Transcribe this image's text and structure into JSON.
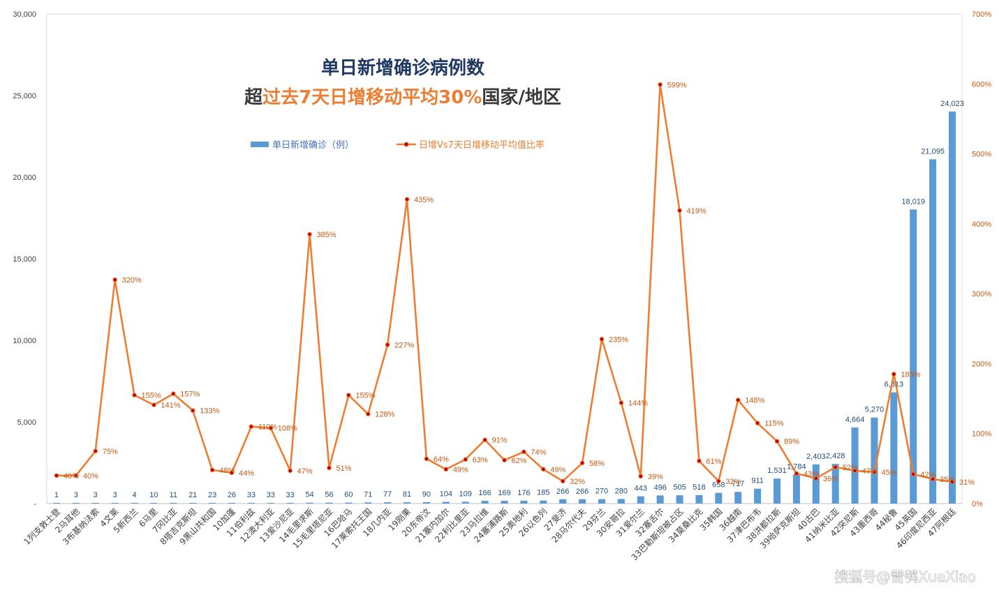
{
  "chart_data": {
    "type": "bar+line",
    "title": "单日新增确诊病例数",
    "subtitle_parts": [
      {
        "text": "超",
        "color": "#3a3a3a"
      },
      {
        "text": "过去7天日增移动平均30%",
        "color": "#ed7d31"
      },
      {
        "text": "国家/地区",
        "color": "#3a3a3a"
      }
    ],
    "colors": {
      "bar": "#5b9bd5",
      "line": "#ed7d31",
      "marker": "#c00000",
      "axis_left": "#404040",
      "axis_right": "#c55a11"
    },
    "legend": {
      "position": "top",
      "bar_label": "单日新增确诊（例）",
      "line_label": "日增Vs7天日增移动平均值比率"
    },
    "y_left": {
      "min": 0,
      "max": 30000,
      "ticks": [
        {
          "value": 0,
          "label": "-"
        },
        {
          "value": 5000,
          "label": "5,000"
        },
        {
          "value": 10000,
          "label": "10,000"
        },
        {
          "value": 15000,
          "label": "15,000"
        },
        {
          "value": 20000,
          "label": "20,000"
        },
        {
          "value": 25000,
          "label": "25,000"
        },
        {
          "value": 30000,
          "label": "30,000"
        }
      ]
    },
    "y_right": {
      "min": 0,
      "max": 700,
      "ticks": [
        {
          "value": 0,
          "label": "0%"
        },
        {
          "value": 100,
          "label": "100%"
        },
        {
          "value": 200,
          "label": "200%"
        },
        {
          "value": 300,
          "label": "300%"
        },
        {
          "value": 400,
          "label": "400%"
        },
        {
          "value": 500,
          "label": "500%"
        },
        {
          "value": 600,
          "label": "600%"
        },
        {
          "value": 700,
          "label": "700%"
        }
      ]
    },
    "categories": [
      "1列支敦士登",
      "2马耳他",
      "3布基纳法索",
      "4文莱",
      "5新西兰",
      "6马里",
      "7冈比亚",
      "8塔吉克斯坦",
      "9黑山共和国",
      "10加蓬",
      "11伯利兹",
      "12澳大利亚",
      "13爱沙尼亚",
      "14毛里求斯",
      "15毛里塔尼亚",
      "16巴哈马",
      "17莱索托王国",
      "18几内亚",
      "19刚果",
      "20东帝汶",
      "21塞内加尔",
      "22利比里亚",
      "23马拉维",
      "24塞浦路斯",
      "25奥地利",
      "26以色列",
      "27斐济",
      "28马尔代夫",
      "29芬兰",
      "30安哥拉",
      "31爱尔兰",
      "32塞舌尔",
      "33巴勒斯坦被占区",
      "34莫桑比克",
      "35韩国",
      "36越南",
      "37津巴布韦",
      "38洪都拉斯",
      "39哈萨克斯坦",
      "40古巴",
      "41纳米比亚",
      "42突尼斯",
      "43墨西哥",
      "44秘鲁",
      "45英国",
      "46印度尼西亚",
      "47阿根廷"
    ],
    "bar_values": [
      1,
      3,
      3,
      3,
      4,
      10,
      11,
      21,
      23,
      26,
      33,
      33,
      33,
      54,
      56,
      60,
      71,
      77,
      81,
      90,
      104,
      109,
      166,
      169,
      176,
      185,
      266,
      266,
      270,
      280,
      443,
      496,
      505,
      518,
      658,
      717,
      911,
      1531,
      1784,
      2403,
      2428,
      4664,
      5270,
      6813,
      18019,
      21095,
      24023
    ],
    "bar_labels": [
      "1",
      "3",
      "3",
      "3",
      "4",
      "10",
      "11",
      "21",
      "23",
      "26",
      "33",
      "33",
      "33",
      "54",
      "56",
      "60",
      "71",
      "77",
      "81",
      "90",
      "104",
      "109",
      "166",
      "169",
      "176",
      "185",
      "266",
      "266",
      "270",
      "280",
      "443",
      "496",
      "505",
      "518",
      "658",
      "717",
      "911",
      "1,531",
      "1,784",
      "2,403",
      "2,428",
      "4,664",
      "5,270",
      "6,813",
      "18,019",
      "21,095",
      "24,023"
    ],
    "ratio_values": [
      40,
      40,
      75,
      320,
      155,
      141,
      157,
      133,
      48,
      44,
      110,
      108,
      47,
      385,
      51,
      155,
      128,
      227,
      435,
      64,
      49,
      63,
      91,
      62,
      74,
      49,
      32,
      58,
      235,
      144,
      39,
      599,
      419,
      61,
      32,
      148,
      115,
      89,
      43,
      36,
      52,
      47,
      45,
      185,
      42,
      35,
      31
    ],
    "ratio_labels": [
      "40%",
      "40%",
      "75%",
      "320%",
      "155%",
      "141%",
      "157%",
      "133%",
      "48%",
      "44%",
      "110%",
      "108%",
      "47%",
      "385%",
      "51%",
      "155%",
      "128%",
      "227%",
      "435%",
      "64%",
      "49%",
      "63%",
      "91%",
      "62%",
      "74%",
      "49%",
      "32%",
      "58%",
      "235%",
      "144%",
      "39%",
      "599%",
      "419%",
      "61%",
      "32%",
      "148%",
      "115%",
      "89%",
      "43%",
      "36%",
      "52%",
      "47%",
      "45%",
      "185%",
      "42%",
      "35%",
      "31%"
    ]
  },
  "watermark": "搜狐号@雪鸮XueXiao"
}
